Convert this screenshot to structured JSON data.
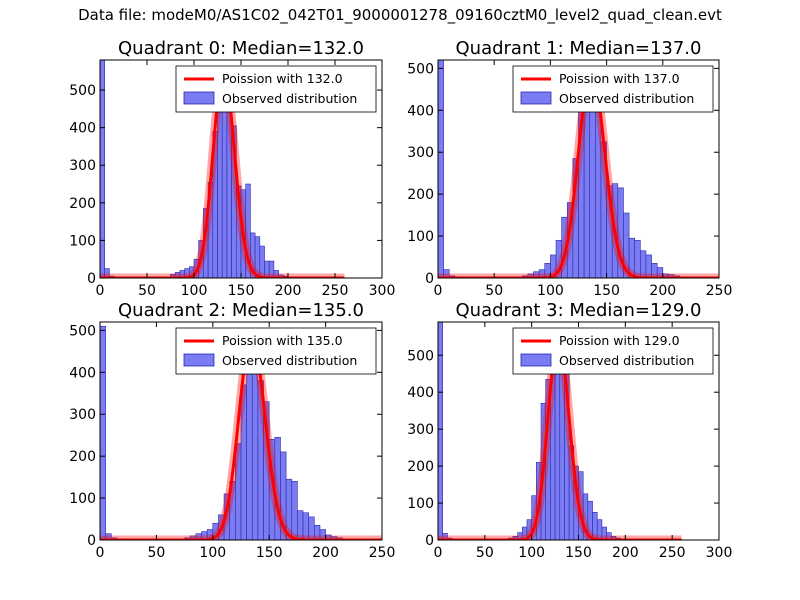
{
  "figure": {
    "suptitle": "Data file: modeM0/AS1C02_042T01_9000001278_09160cztM0_level2_quad_clean.evt"
  },
  "colors": {
    "hist_fill": "#7b7bf2",
    "hist_edge": "#2a2ab0",
    "poisson": "#ff0000"
  },
  "legend": {
    "observed": "Observed distribution",
    "placement": "upper right"
  },
  "chart_data": [
    {
      "type": "bar",
      "title": "Quadrant 0: Median=132.0",
      "median": 132.0,
      "poisson_label": "Poission with 132.0",
      "xlim": [
        0,
        300
      ],
      "ylim": [
        0,
        580
      ],
      "xticks": [
        0,
        50,
        100,
        150,
        200,
        250,
        300
      ],
      "yticks": [
        0,
        100,
        200,
        300,
        400,
        500
      ],
      "bin_width": 5,
      "bins": [
        [
          0,
          580
        ],
        [
          5,
          25
        ],
        [
          10,
          5
        ],
        [
          15,
          3
        ],
        [
          20,
          2
        ],
        [
          25,
          2
        ],
        [
          30,
          1
        ],
        [
          35,
          1
        ],
        [
          40,
          1
        ],
        [
          45,
          1
        ],
        [
          50,
          1
        ],
        [
          55,
          1
        ],
        [
          60,
          1
        ],
        [
          65,
          1
        ],
        [
          70,
          3
        ],
        [
          75,
          10
        ],
        [
          80,
          15
        ],
        [
          85,
          20
        ],
        [
          90,
          25
        ],
        [
          95,
          30
        ],
        [
          100,
          50
        ],
        [
          105,
          100
        ],
        [
          110,
          185
        ],
        [
          115,
          255
        ],
        [
          120,
          390
        ],
        [
          125,
          530
        ],
        [
          130,
          555
        ],
        [
          135,
          500
        ],
        [
          140,
          405
        ],
        [
          145,
          245
        ],
        [
          150,
          235
        ],
        [
          155,
          250
        ],
        [
          160,
          120
        ],
        [
          165,
          110
        ],
        [
          170,
          85
        ],
        [
          175,
          45
        ],
        [
          180,
          45
        ],
        [
          185,
          20
        ],
        [
          190,
          8
        ],
        [
          195,
          5
        ],
        [
          200,
          3
        ],
        [
          205,
          2
        ],
        [
          210,
          2
        ],
        [
          215,
          1
        ],
        [
          220,
          1
        ],
        [
          225,
          1
        ],
        [
          230,
          1
        ],
        [
          235,
          1
        ],
        [
          240,
          1
        ],
        [
          245,
          1
        ],
        [
          250,
          1
        ],
        [
          255,
          1
        ]
      ],
      "poisson_curve": {
        "lambda": 132.0,
        "peak": 550
      }
    },
    {
      "type": "bar",
      "title": "Quadrant 1: Median=137.0",
      "median": 137.0,
      "poisson_label": "Poission with 137.0",
      "xlim": [
        0,
        250
      ],
      "ylim": [
        0,
        520
      ],
      "xticks": [
        0,
        50,
        100,
        150,
        200,
        250
      ],
      "yticks": [
        0,
        100,
        200,
        300,
        400,
        500
      ],
      "bin_width": 5,
      "bins": [
        [
          0,
          520
        ],
        [
          5,
          20
        ],
        [
          10,
          5
        ],
        [
          15,
          3
        ],
        [
          20,
          2
        ],
        [
          25,
          2
        ],
        [
          30,
          1
        ],
        [
          35,
          1
        ],
        [
          40,
          1
        ],
        [
          45,
          1
        ],
        [
          50,
          1
        ],
        [
          55,
          1
        ],
        [
          60,
          1
        ],
        [
          65,
          1
        ],
        [
          70,
          2
        ],
        [
          75,
          5
        ],
        [
          80,
          10
        ],
        [
          85,
          15
        ],
        [
          90,
          20
        ],
        [
          95,
          35
        ],
        [
          100,
          55
        ],
        [
          105,
          90
        ],
        [
          110,
          145
        ],
        [
          115,
          180
        ],
        [
          120,
          285
        ],
        [
          125,
          430
        ],
        [
          130,
          480
        ],
        [
          135,
          440
        ],
        [
          140,
          435
        ],
        [
          145,
          325
        ],
        [
          150,
          220
        ],
        [
          155,
          225
        ],
        [
          160,
          215
        ],
        [
          165,
          155
        ],
        [
          170,
          95
        ],
        [
          175,
          90
        ],
        [
          180,
          65
        ],
        [
          185,
          55
        ],
        [
          190,
          35
        ],
        [
          195,
          25
        ],
        [
          200,
          10
        ],
        [
          205,
          8
        ],
        [
          210,
          5
        ],
        [
          215,
          3
        ],
        [
          220,
          2
        ],
        [
          225,
          1
        ]
      ],
      "poisson_curve": {
        "lambda": 137.0,
        "peak": 495
      }
    },
    {
      "type": "bar",
      "title": "Quadrant 2: Median=135.0",
      "median": 135.0,
      "poisson_label": "Poission with 135.0",
      "xlim": [
        0,
        250
      ],
      "ylim": [
        0,
        520
      ],
      "xticks": [
        0,
        50,
        100,
        150,
        200,
        250
      ],
      "yticks": [
        0,
        100,
        200,
        300,
        400,
        500
      ],
      "bin_width": 5,
      "bins": [
        [
          0,
          510
        ],
        [
          5,
          15
        ],
        [
          10,
          5
        ],
        [
          15,
          3
        ],
        [
          20,
          2
        ],
        [
          25,
          2
        ],
        [
          30,
          1
        ],
        [
          35,
          1
        ],
        [
          40,
          1
        ],
        [
          45,
          1
        ],
        [
          50,
          1
        ],
        [
          55,
          1
        ],
        [
          60,
          1
        ],
        [
          65,
          1
        ],
        [
          70,
          2
        ],
        [
          75,
          5
        ],
        [
          80,
          10
        ],
        [
          85,
          15
        ],
        [
          90,
          20
        ],
        [
          95,
          25
        ],
        [
          100,
          40
        ],
        [
          105,
          60
        ],
        [
          110,
          110
        ],
        [
          115,
          140
        ],
        [
          120,
          230
        ],
        [
          125,
          370
        ],
        [
          130,
          480
        ],
        [
          135,
          450
        ],
        [
          140,
          380
        ],
        [
          145,
          330
        ],
        [
          150,
          240
        ],
        [
          155,
          245
        ],
        [
          160,
          210
        ],
        [
          165,
          145
        ],
        [
          170,
          140
        ],
        [
          175,
          70
        ],
        [
          180,
          65
        ],
        [
          185,
          55
        ],
        [
          190,
          35
        ],
        [
          195,
          25
        ],
        [
          200,
          12
        ],
        [
          205,
          8
        ],
        [
          210,
          5
        ]
      ],
      "poisson_curve": {
        "lambda": 135.0,
        "peak": 485
      }
    },
    {
      "type": "bar",
      "title": "Quadrant 3: Median=129.0",
      "median": 129.0,
      "poisson_label": "Poission with 129.0",
      "xlim": [
        0,
        300
      ],
      "ylim": [
        0,
        590
      ],
      "xticks": [
        0,
        50,
        100,
        150,
        200,
        250,
        300
      ],
      "yticks": [
        0,
        100,
        200,
        300,
        400,
        500
      ],
      "bin_width": 5,
      "bins": [
        [
          0,
          590
        ],
        [
          5,
          18
        ],
        [
          10,
          5
        ],
        [
          15,
          3
        ],
        [
          20,
          2
        ],
        [
          25,
          2
        ],
        [
          30,
          1
        ],
        [
          35,
          1
        ],
        [
          40,
          1
        ],
        [
          45,
          1
        ],
        [
          50,
          1
        ],
        [
          55,
          1
        ],
        [
          60,
          1
        ],
        [
          65,
          1
        ],
        [
          70,
          2
        ],
        [
          75,
          5
        ],
        [
          80,
          10
        ],
        [
          85,
          20
        ],
        [
          90,
          35
        ],
        [
          95,
          55
        ],
        [
          100,
          120
        ],
        [
          105,
          210
        ],
        [
          110,
          370
        ],
        [
          115,
          435
        ],
        [
          120,
          475
        ],
        [
          125,
          540
        ],
        [
          130,
          505
        ],
        [
          135,
          500
        ],
        [
          140,
          255
        ],
        [
          145,
          200
        ],
        [
          150,
          185
        ],
        [
          155,
          125
        ],
        [
          160,
          105
        ],
        [
          165,
          75
        ],
        [
          170,
          55
        ],
        [
          175,
          35
        ],
        [
          180,
          20
        ],
        [
          185,
          10
        ],
        [
          190,
          5
        ],
        [
          195,
          3
        ],
        [
          200,
          2
        ],
        [
          205,
          1
        ],
        [
          210,
          1
        ],
        [
          215,
          1
        ],
        [
          220,
          1
        ],
        [
          225,
          1
        ],
        [
          230,
          1
        ],
        [
          235,
          1
        ],
        [
          240,
          1
        ],
        [
          245,
          1
        ],
        [
          250,
          1
        ],
        [
          255,
          1
        ]
      ],
      "poisson_curve": {
        "lambda": 129.0,
        "peak": 545
      }
    }
  ]
}
